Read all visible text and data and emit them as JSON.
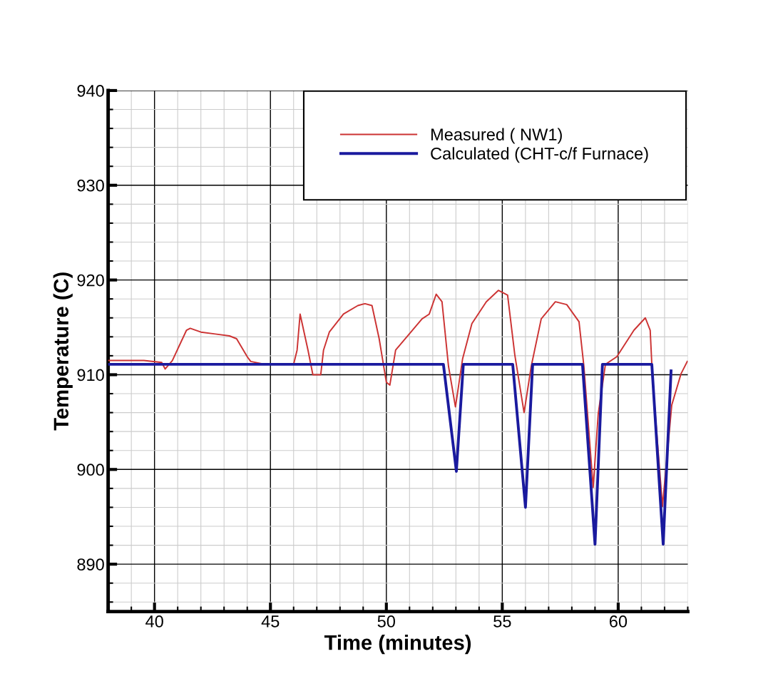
{
  "chart_data": {
    "type": "line",
    "xlabel": "Time (minutes)",
    "ylabel": "Temperature (C)",
    "xlim": [
      38,
      63
    ],
    "ylim": [
      885,
      940
    ],
    "xticks": [
      40,
      45,
      50,
      55,
      60
    ],
    "yticks": [
      890,
      900,
      910,
      920,
      930,
      940
    ],
    "grid": true,
    "legend": "top right",
    "marker": "none",
    "line_style": "solid",
    "series": [
      {
        "name": "Measured ( NW1)",
        "color": "#cc3333",
        "x": [
          38.0,
          39.54,
          40.31,
          40.46,
          40.77,
          41.38,
          41.54,
          42.0,
          42.62,
          43.23,
          43.54,
          44.0,
          44.15,
          44.77,
          46.0,
          46.15,
          46.28,
          46.62,
          46.83,
          47.17,
          47.29,
          47.54,
          48.15,
          48.77,
          49.08,
          49.38,
          49.69,
          50.0,
          50.15,
          50.4,
          51.02,
          51.54,
          51.85,
          52.15,
          52.4,
          52.68,
          52.98,
          53.29,
          53.69,
          54.31,
          54.83,
          55.23,
          55.54,
          55.94,
          56.25,
          56.68,
          57.29,
          57.78,
          58.31,
          58.52,
          58.92,
          59.14,
          59.45,
          59.94,
          60.68,
          61.17,
          61.38,
          61.48,
          61.91,
          62.31,
          62.71,
          62.98
        ],
        "values": [
          911.5,
          911.5,
          911.3,
          910.6,
          911.5,
          914.7,
          914.9,
          914.5,
          914.3,
          914.1,
          913.8,
          911.9,
          911.4,
          911.1,
          911.1,
          912.6,
          916.4,
          912.6,
          910.0,
          910.0,
          912.6,
          914.5,
          916.4,
          917.3,
          917.5,
          917.3,
          913.8,
          909.2,
          908.9,
          912.6,
          914.4,
          915.9,
          916.4,
          918.5,
          917.7,
          910.9,
          906.6,
          911.7,
          915.4,
          917.7,
          918.9,
          918.4,
          912.1,
          906.0,
          910.9,
          915.9,
          917.7,
          917.4,
          915.6,
          910.9,
          898.1,
          905.9,
          911.1,
          911.9,
          914.7,
          916.0,
          914.7,
          909.6,
          896.1,
          906.8,
          910.1,
          911.4
        ]
      },
      {
        "name": "Calculated (CHT-c/f Furnace)",
        "color": "#1a1a9e",
        "x": [
          38.0,
          52.46,
          53.02,
          53.32,
          55.45,
          56.0,
          56.31,
          58.46,
          59.0,
          59.32,
          61.45,
          61.94,
          62.28
        ],
        "values": [
          911.1,
          911.1,
          899.8,
          911.1,
          911.1,
          896.0,
          911.1,
          911.1,
          892.1,
          911.1,
          911.1,
          892.1,
          910.4
        ]
      }
    ]
  }
}
